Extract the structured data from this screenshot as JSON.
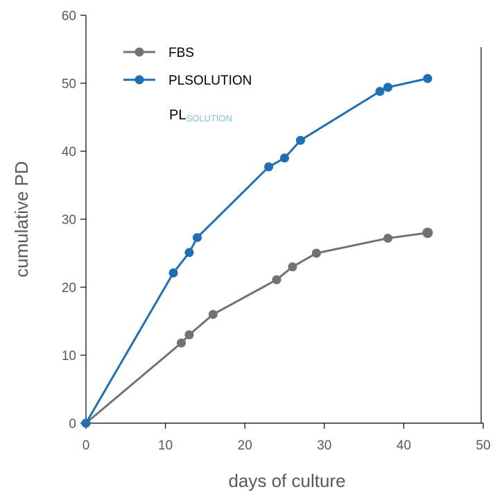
{
  "chart_data": {
    "type": "line",
    "title": "",
    "xlabel": "days of culture",
    "ylabel": "cumulative PD",
    "xlim": [
      0,
      50
    ],
    "ylim": [
      0,
      60
    ],
    "x_ticks": [
      0,
      10,
      20,
      30,
      40,
      50
    ],
    "y_ticks": [
      0,
      10,
      20,
      30,
      40,
      50,
      60
    ],
    "grid": false,
    "legend_position": "top-left",
    "series": [
      {
        "name": "FBS",
        "color": "#767171",
        "marker": "circle",
        "x": [
          0,
          12,
          13,
          16,
          24,
          26,
          29,
          38,
          43
        ],
        "y": [
          0,
          11.8,
          13.0,
          16.0,
          21.1,
          23.0,
          25.0,
          27.2,
          28.0
        ]
      },
      {
        "name": "PLSOLUTION",
        "color": "#1f6fb4",
        "marker": "circle",
        "x": [
          0,
          11,
          13,
          14,
          23,
          25,
          27,
          37,
          38,
          43
        ],
        "y": [
          0,
          22.1,
          25.1,
          27.3,
          37.7,
          39.0,
          41.6,
          48.8,
          49.4,
          50.7
        ]
      }
    ],
    "annotation": {
      "main": "PL",
      "subscript": "SOLUTION",
      "subscript_color": "#7cc4e0"
    }
  }
}
